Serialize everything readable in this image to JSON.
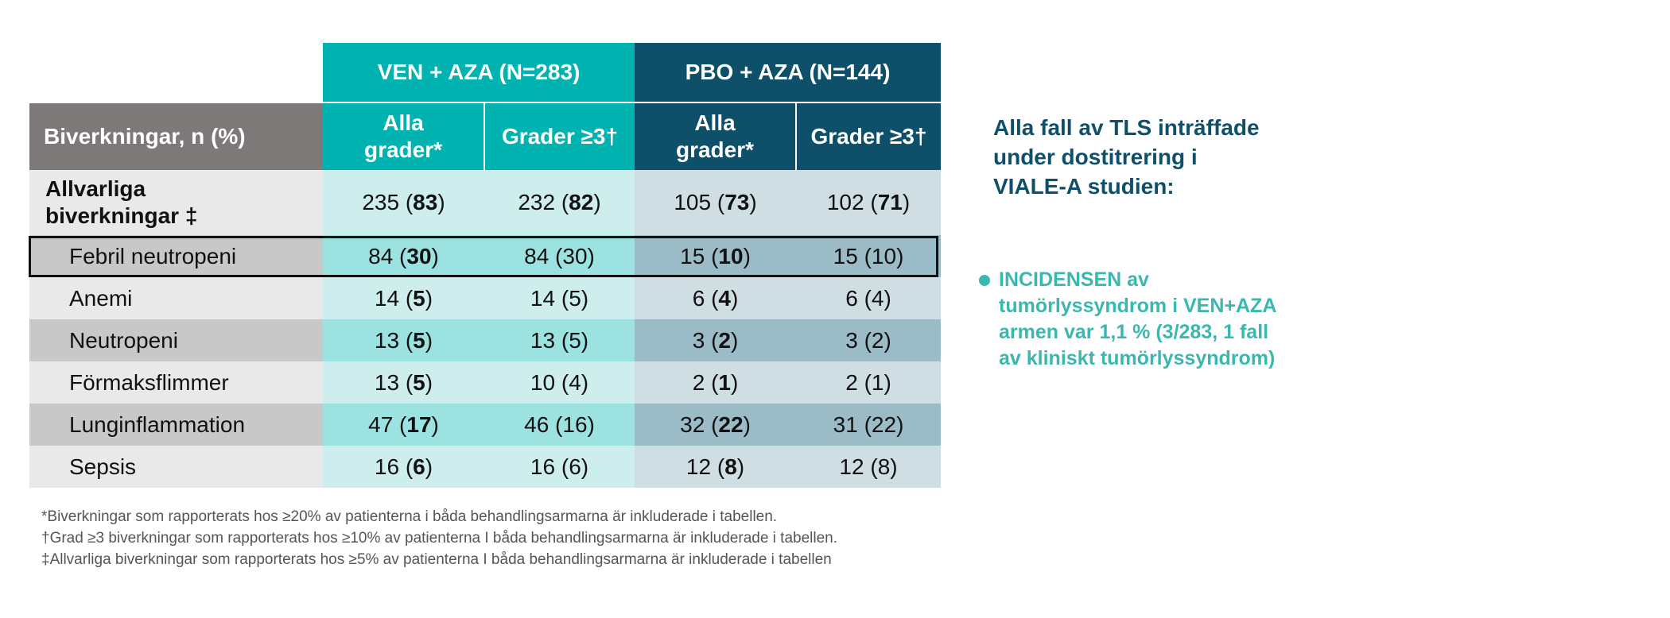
{
  "table": {
    "group_headers": {
      "ven_aza": "VEN + AZA (N=283)",
      "pbo_aza": "PBO + AZA (N=144)"
    },
    "col_label": "Biverkningar, n (%)",
    "sub_headers": {
      "all_grades": [
        "Alla",
        "grader*"
      ],
      "grade3": "Grader ≥3†"
    },
    "rows": [
      {
        "label": [
          "Allvarliga",
          "biverkningar ‡"
        ],
        "cells": [
          {
            "n": "235",
            "pct": "83",
            "bold": true
          },
          {
            "n": "232",
            "pct": "82",
            "bold": true
          },
          {
            "n": "105",
            "pct": "73",
            "bold": true
          },
          {
            "n": "102",
            "pct": "71",
            "bold": true
          }
        ]
      },
      {
        "label": [
          "Febril neutropeni"
        ],
        "cells": [
          {
            "n": "84",
            "pct": "30",
            "bold": true
          },
          {
            "n": "84",
            "pct": "30",
            "bold": false
          },
          {
            "n": "15",
            "pct": "10",
            "bold": true
          },
          {
            "n": "15",
            "pct": "10",
            "bold": false
          }
        ]
      },
      {
        "label": [
          "Anemi"
        ],
        "cells": [
          {
            "n": "14",
            "pct": "5",
            "bold": true
          },
          {
            "n": "14",
            "pct": "5",
            "bold": false
          },
          {
            "n": "6",
            "pct": "4",
            "bold": true
          },
          {
            "n": "6",
            "pct": "4",
            "bold": false
          }
        ]
      },
      {
        "label": [
          "Neutropeni"
        ],
        "cells": [
          {
            "n": "13",
            "pct": "5",
            "bold": true
          },
          {
            "n": "13",
            "pct": "5",
            "bold": false
          },
          {
            "n": "3",
            "pct": "2",
            "bold": true
          },
          {
            "n": "3",
            "pct": "2",
            "bold": false
          }
        ]
      },
      {
        "label": [
          "Förmaksflimmer"
        ],
        "cells": [
          {
            "n": "13",
            "pct": "5",
            "bold": true
          },
          {
            "n": "10",
            "pct": "4",
            "bold": false
          },
          {
            "n": "2",
            "pct": "1",
            "bold": true
          },
          {
            "n": "2",
            "pct": "1",
            "bold": false
          }
        ]
      },
      {
        "label": [
          "Lunginflammation"
        ],
        "cells": [
          {
            "n": "47",
            "pct": "17",
            "bold": true
          },
          {
            "n": "46",
            "pct": "16",
            "bold": false
          },
          {
            "n": "32",
            "pct": "22",
            "bold": true
          },
          {
            "n": "31",
            "pct": "22",
            "bold": false
          }
        ]
      },
      {
        "label": [
          "Sepsis"
        ],
        "cells": [
          {
            "n": "16",
            "pct": "6",
            "bold": true
          },
          {
            "n": "16",
            "pct": "6",
            "bold": false
          },
          {
            "n": "12",
            "pct": "8",
            "bold": true
          },
          {
            "n": "12",
            "pct": "8",
            "bold": false
          }
        ]
      }
    ],
    "highlighted_row": "Febril neutropeni"
  },
  "footnotes": [
    "*Biverkningar som  rapporterats hos ≥20% av patienterna i båda behandlingsarmarna är inkluderade i tabellen.",
    "†Grad ≥3 biverkningar som rapporterats hos ≥10% av patienterna I båda behandlingsarmarna är inkluderade i tabellen.",
    "‡Allvarliga biverkningar som rapporterats hos ≥5% av patienterna I båda behandlingsarmarna är inkluderade i tabellen"
  ],
  "side": {
    "heading": [
      "Alla fall av TLS inträffade",
      "under dostitrering i",
      "VIALE-A studien:"
    ],
    "bullet": [
      "INCIDENSEN av",
      "tumörlyssyndrom i VEN+AZA",
      "armen var 1,1 % (3/283, 1 fall",
      "av kliniskt tumörlyssyndrom)"
    ]
  },
  "colors": {
    "ven_header": "#00b3b0",
    "pbo_header": "#0e4f6a",
    "label_header": "#7c7978",
    "side_heading": "#0e4f6a",
    "side_bullet": "#3ab8b0"
  }
}
